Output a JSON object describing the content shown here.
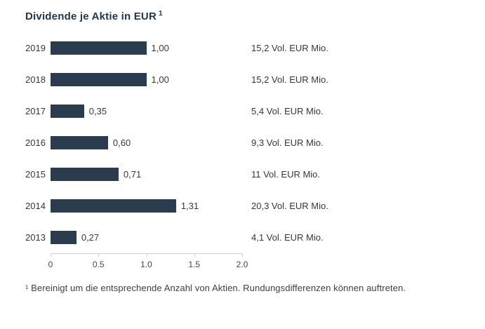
{
  "chart_data": {
    "type": "bar",
    "orientation": "horizontal",
    "title": "Dividende je Aktie in EUR",
    "title_superscript": "1",
    "xlabel": "",
    "ylabel": "",
    "xlim": [
      0,
      2.0
    ],
    "x_ticks": [
      "0",
      "0.5",
      "1.0",
      "1.5",
      "2.0"
    ],
    "grid": false,
    "legend": false,
    "bar_color": "#2b3c4f",
    "categories": [
      "2019",
      "2018",
      "2017",
      "2016",
      "2015",
      "2014",
      "2013"
    ],
    "values": [
      1.0,
      1.0,
      0.35,
      0.6,
      0.71,
      1.31,
      0.27
    ],
    "rows": [
      {
        "year": "2019",
        "value": 1.0,
        "value_label": "1,00",
        "volume_label": "15,2 Vol. EUR Mio."
      },
      {
        "year": "2018",
        "value": 1.0,
        "value_label": "1,00",
        "volume_label": "15,2 Vol. EUR Mio."
      },
      {
        "year": "2017",
        "value": 0.35,
        "value_label": "0,35",
        "volume_label": "5,4 Vol. EUR Mio."
      },
      {
        "year": "2016",
        "value": 0.6,
        "value_label": "0,60",
        "volume_label": "9,3 Vol. EUR Mio."
      },
      {
        "year": "2015",
        "value": 0.71,
        "value_label": "0,71",
        "volume_label": "11 Vol. EUR Mio."
      },
      {
        "year": "2014",
        "value": 1.31,
        "value_label": "1,31",
        "volume_label": "20,3 Vol. EUR Mio."
      },
      {
        "year": "2013",
        "value": 0.27,
        "value_label": "0,27",
        "volume_label": "4,1 Vol. EUR Mio."
      }
    ]
  },
  "footnote": "¹ Bereinigt um die entsprechende Anzahl von Aktien. Rundungsdifferenzen können auftreten."
}
